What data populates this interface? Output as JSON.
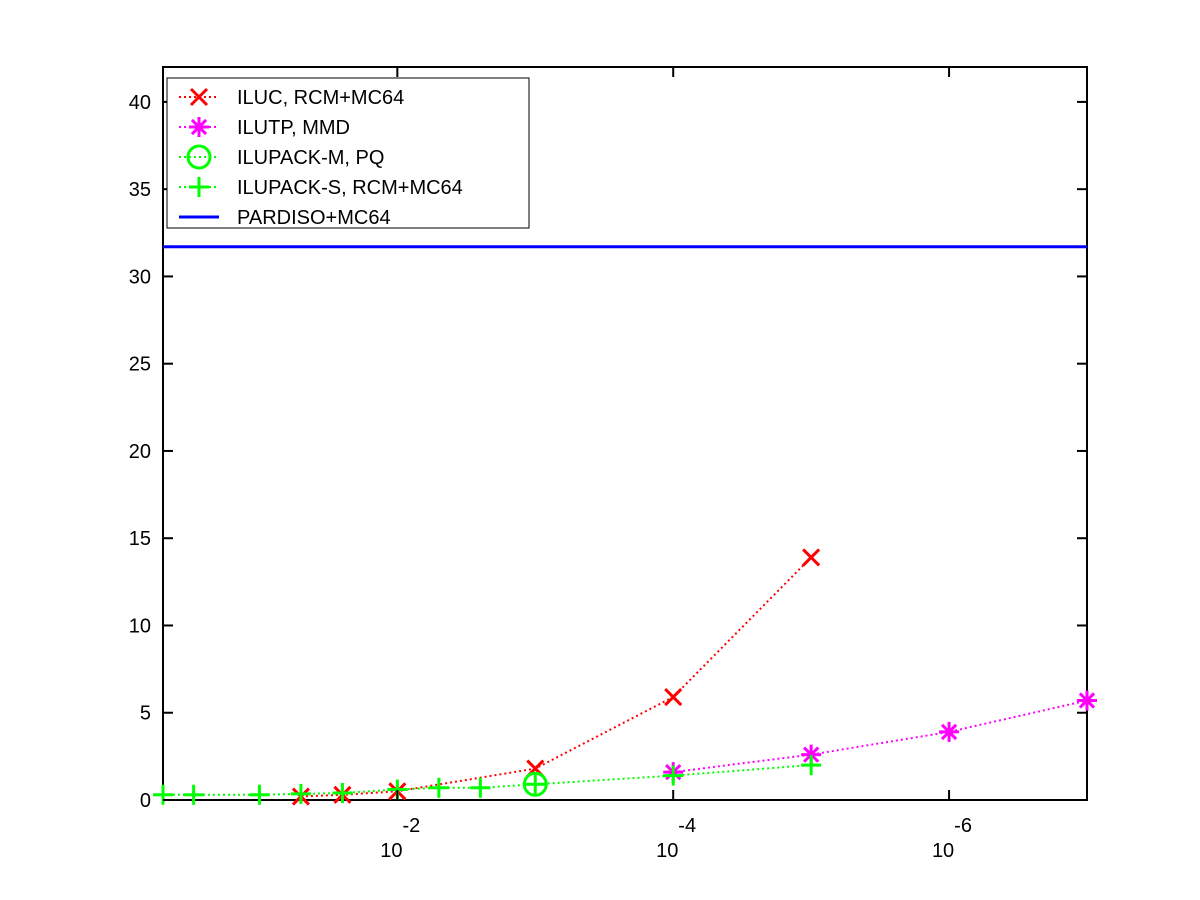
{
  "chart_data": {
    "type": "line",
    "title": "",
    "xlabel": "",
    "ylabel": "",
    "x_scale": "log",
    "x_direction": "decreasing",
    "xlim": [
      0.5,
      1e-07
    ],
    "ylim": [
      0,
      42
    ],
    "grid": false,
    "legend_position": "top-left",
    "y_ticks": [
      0,
      5,
      10,
      15,
      20,
      25,
      30,
      35,
      40
    ],
    "y_tick_labels": [
      "0",
      "5",
      "10",
      "15",
      "20",
      "25",
      "30",
      "35",
      "40"
    ],
    "x_ticks": [
      0.01,
      0.0001,
      1e-06
    ],
    "x_tick_labels": [
      {
        "base": "10",
        "exp": "-2"
      },
      {
        "base": "10",
        "exp": "-4"
      },
      {
        "base": "10",
        "exp": "-6"
      }
    ],
    "series": [
      {
        "name": "ILUC, RCM+MC64",
        "color": "#ff0000",
        "marker": "x",
        "line_style": "dotted",
        "points": [
          {
            "x": 0.05,
            "y": 0.2
          },
          {
            "x": 0.025,
            "y": 0.3
          },
          {
            "x": 0.01,
            "y": 0.5
          },
          {
            "x": 0.001,
            "y": 1.8
          },
          {
            "x": 0.0001,
            "y": 5.9
          },
          {
            "x": 1e-05,
            "y": 13.9
          }
        ]
      },
      {
        "name": "ILUTP, MMD",
        "color": "#ff00ff",
        "marker": "star",
        "line_style": "dotted",
        "points": [
          {
            "x": 0.0001,
            "y": 1.6
          },
          {
            "x": 1e-05,
            "y": 2.6
          },
          {
            "x": 1e-06,
            "y": 3.9
          },
          {
            "x": 1e-07,
            "y": 5.7
          }
        ]
      },
      {
        "name": "ILUPACK-M, PQ",
        "color": "#00ff00",
        "marker": "circle",
        "line_style": "dotted",
        "points": [
          {
            "x": 0.001,
            "y": 0.9
          }
        ]
      },
      {
        "name": "ILUPACK-S, RCM+MC64",
        "color": "#00ff00",
        "marker": "plus",
        "line_style": "dotted",
        "points": [
          {
            "x": 0.5,
            "y": 0.3
          },
          {
            "x": 0.3,
            "y": 0.3
          },
          {
            "x": 0.1,
            "y": 0.3
          },
          {
            "x": 0.05,
            "y": 0.35
          },
          {
            "x": 0.025,
            "y": 0.4
          },
          {
            "x": 0.01,
            "y": 0.6
          },
          {
            "x": 0.005,
            "y": 0.7
          },
          {
            "x": 0.0025,
            "y": 0.7
          },
          {
            "x": 0.001,
            "y": 0.9
          },
          {
            "x": 0.0001,
            "y": 1.4
          },
          {
            "x": 1e-05,
            "y": 2.0
          }
        ]
      },
      {
        "name": "PARDISO+MC64",
        "color": "#0000ff",
        "marker": "none",
        "line_style": "solid",
        "points": [
          {
            "x": 0.5,
            "y": 31.7
          },
          {
            "x": 1e-07,
            "y": 31.7
          }
        ]
      }
    ]
  }
}
